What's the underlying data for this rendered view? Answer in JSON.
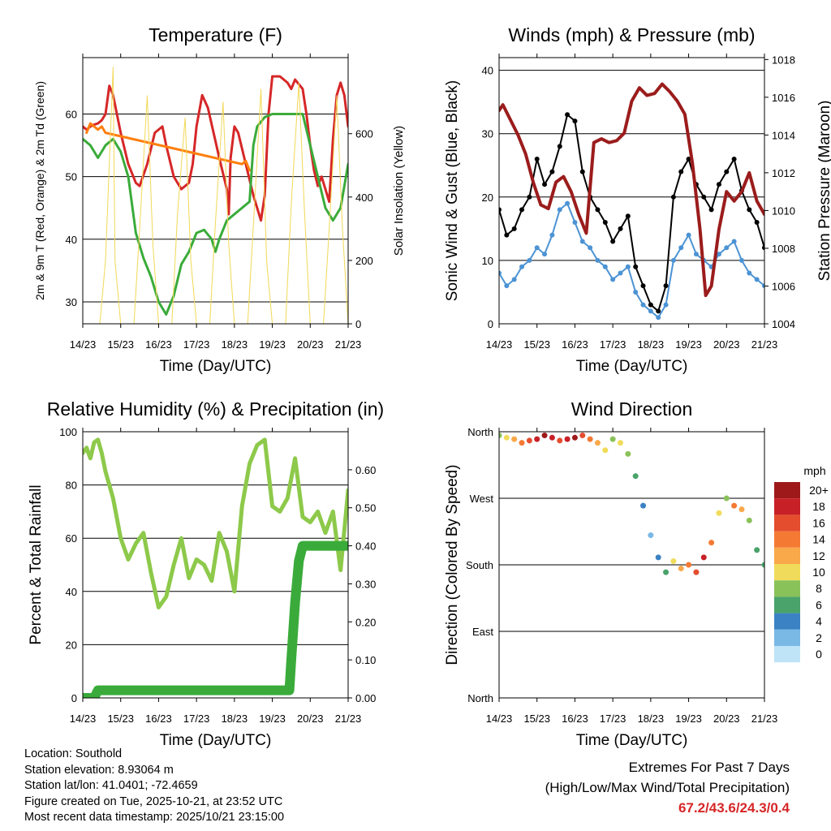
{
  "chart_data": [
    {
      "id": "temperature",
      "type": "line",
      "title": "Temperature (F)",
      "xlabel": "Time (Day/UTC)",
      "ylabel": "2m & 9m T (Red, Orange) & 2m Td (Green)",
      "ylabel_right": "Solar Insolation (Yellow)",
      "x_ticks": [
        "14/23",
        "15/23",
        "16/23",
        "17/23",
        "18/23",
        "19/23",
        "20/23",
        "21/23"
      ],
      "xlim": [
        0,
        7
      ],
      "ylim": [
        26.5,
        69
      ],
      "yticks": [
        30,
        40,
        50,
        60
      ],
      "ylim_right": [
        0,
        840
      ],
      "yticks_right": [
        0,
        200,
        400,
        600
      ],
      "series": [
        {
          "name": "2m T",
          "color": "#d62728",
          "x": [
            0,
            0.1,
            0.2,
            0.3,
            0.4,
            0.5,
            0.6,
            0.7,
            0.8,
            1,
            1.2,
            1.4,
            1.5,
            1.7,
            1.9,
            2.1,
            2.2,
            2.4,
            2.6,
            2.8,
            2.9,
            3,
            3.15,
            3.3,
            3.45,
            3.6,
            3.8,
            3.85,
            3.9,
            4.0,
            4.1,
            4.3,
            4.5,
            4.7,
            4.8,
            4.9,
            5,
            5.2,
            5.4,
            5.5,
            5.6,
            5.8,
            5.9,
            6,
            6.1,
            6.2,
            6.3,
            6.4,
            6.5,
            6.6,
            6.7,
            6.8,
            6.9,
            7
          ],
          "values": [
            58,
            57.5,
            58,
            58.3,
            58.5,
            59,
            60,
            64.5,
            63,
            57,
            52,
            49,
            48.5,
            52,
            57,
            58,
            55,
            50,
            48,
            49,
            52,
            58,
            63,
            61,
            57,
            53,
            48,
            44,
            53,
            58,
            57,
            52,
            47,
            43,
            47,
            60,
            66,
            66,
            65,
            64,
            65.5,
            64,
            60,
            55,
            51,
            48.5,
            50,
            48,
            46,
            56,
            63,
            65,
            63,
            58
          ]
        },
        {
          "name": "9m T",
          "color": "#ff7f0e",
          "x": [
            0.1,
            0.2,
            0.3,
            0.4,
            0.5,
            0.6,
            4.2,
            4.3,
            4.4
          ],
          "values": [
            57,
            58.5,
            58,
            57.5,
            58,
            57,
            52,
            52.5,
            51
          ]
        },
        {
          "name": "2m Td",
          "color": "#3aab3a",
          "x": [
            0,
            0.2,
            0.4,
            0.6,
            0.8,
            1,
            1.2,
            1.4,
            1.6,
            1.8,
            2,
            2.2,
            2.4,
            2.6,
            2.8,
            3,
            3.2,
            3.4,
            3.5,
            3.6,
            3.8,
            4,
            4.2,
            4.4,
            4.5,
            4.6,
            4.8,
            5,
            5.2,
            5.4,
            5.6,
            5.8,
            6,
            6.2,
            6.4,
            6.6,
            6.8,
            7
          ],
          "values": [
            56,
            55,
            53,
            55,
            56,
            54,
            50,
            41,
            37,
            34,
            30,
            28,
            31,
            36,
            38,
            41,
            41.5,
            40,
            38,
            40,
            43,
            44,
            45,
            46,
            55,
            58,
            59.5,
            60,
            60,
            60,
            60,
            60,
            55,
            50,
            45,
            43,
            45,
            52
          ]
        },
        {
          "name": "Solar Insolation",
          "color": "#f2d857",
          "axis": "right",
          "x": [
            0,
            0.45,
            0.6,
            0.8,
            0.85,
            1,
            1.15,
            1.35,
            1.5,
            1.7,
            1.85,
            2,
            2.15,
            2.35,
            2.5,
            2.7,
            2.85,
            3,
            3.15,
            3.35,
            3.5,
            3.7,
            3.85,
            4,
            4.15,
            4.35,
            4.5,
            4.7,
            4.85,
            5,
            5.15,
            5.35,
            5.5,
            5.7,
            5.85,
            6,
            6.15,
            6.35,
            6.5,
            6.7,
            6.85,
            7
          ],
          "values": [
            0,
            0,
            200,
            810,
            200,
            0,
            0,
            0,
            300,
            720,
            250,
            0,
            0,
            0,
            350,
            650,
            200,
            0,
            0,
            0,
            320,
            700,
            250,
            0,
            0,
            0,
            310,
            740,
            200,
            0,
            0,
            0,
            380,
            760,
            350,
            0,
            0,
            0,
            300,
            720,
            300,
            0
          ]
        }
      ]
    },
    {
      "id": "winds",
      "type": "scatter",
      "title": "Winds (mph) & Pressure (mb)",
      "xlabel": "Time (Day/UTC)",
      "ylabel": "Sonic Wind & Gust (Blue, Black)",
      "ylabel_right": "Station Pressure (Maroon)",
      "x_ticks": [
        "14/23",
        "15/23",
        "16/23",
        "17/23",
        "18/23",
        "19/23",
        "20/23",
        "21/23"
      ],
      "xlim": [
        0,
        7
      ],
      "ylim": [
        0,
        42
      ],
      "yticks": [
        0,
        10,
        20,
        30,
        40
      ],
      "ylim_right": [
        1004,
        1018.1
      ],
      "yticks_right": [
        1004,
        1006,
        1008,
        1010,
        1012,
        1014,
        1016,
        1018
      ],
      "series": [
        {
          "name": "Sonic Wind",
          "color": "#4c93d4",
          "x": [
            0,
            0.2,
            0.4,
            0.6,
            0.8,
            1,
            1.2,
            1.4,
            1.6,
            1.8,
            2,
            2.2,
            2.4,
            2.6,
            2.8,
            3,
            3.2,
            3.4,
            3.6,
            3.8,
            4,
            4.2,
            4.4,
            4.6,
            4.8,
            5,
            5.2,
            5.4,
            5.6,
            5.8,
            6,
            6.2,
            6.4,
            6.6,
            6.8,
            7
          ],
          "values": [
            8,
            6,
            7,
            9,
            10,
            12,
            11,
            14,
            18,
            19,
            16,
            13,
            12,
            10,
            9,
            7,
            8,
            9,
            5,
            3,
            2,
            1,
            3,
            10,
            12,
            14,
            11,
            10,
            9,
            11,
            12,
            13,
            10,
            8,
            7,
            6
          ]
        },
        {
          "name": "Gust",
          "color": "#000000",
          "x": [
            0,
            0.2,
            0.4,
            0.6,
            0.8,
            1,
            1.2,
            1.4,
            1.6,
            1.8,
            2,
            2.2,
            2.4,
            2.6,
            2.8,
            3,
            3.2,
            3.4,
            3.6,
            3.8,
            4,
            4.2,
            4.4,
            4.6,
            4.8,
            5,
            5.2,
            5.4,
            5.6,
            5.8,
            6,
            6.2,
            6.4,
            6.6,
            6.8,
            7
          ],
          "values": [
            18,
            14,
            15,
            18,
            20,
            26,
            22,
            24,
            28,
            33,
            32,
            24,
            20,
            18,
            16,
            13,
            15,
            17,
            9,
            6,
            3,
            2,
            6,
            20,
            24,
            26,
            22,
            20,
            18,
            22,
            24,
            26,
            21,
            18,
            16,
            12
          ]
        },
        {
          "name": "Station Pressure",
          "color": "#9b1c1c",
          "axis": "right",
          "x": [
            0,
            0.1,
            0.3,
            0.5,
            0.7,
            0.9,
            1.1,
            1.3,
            1.5,
            1.7,
            1.9,
            2.1,
            2.3,
            2.5,
            2.7,
            2.9,
            3.1,
            3.3,
            3.5,
            3.7,
            3.9,
            4.1,
            4.3,
            4.5,
            4.7,
            4.9,
            5.1,
            5.3,
            5.45,
            5.6,
            5.8,
            6,
            6.2,
            6.4,
            6.6,
            6.8,
            7
          ],
          "values": [
            1015.3,
            1015.6,
            1014.8,
            1014.0,
            1013.0,
            1011.5,
            1010.3,
            1010.1,
            1011.5,
            1011.8,
            1011.0,
            1009.8,
            1008.8,
            1013.6,
            1013.8,
            1013.6,
            1013.7,
            1014.1,
            1015.8,
            1016.5,
            1016.1,
            1016.2,
            1016.7,
            1016.3,
            1015.8,
            1015.1,
            1012.5,
            1009.0,
            1005.5,
            1006.0,
            1009.0,
            1011.0,
            1010.5,
            1011.0,
            1012.0,
            1010.5,
            1009.8
          ]
        }
      ]
    },
    {
      "id": "humidity",
      "type": "line",
      "title": "Relative Humidity (%) & Precipitation (in)",
      "xlabel": "Time (Day/UTC)",
      "ylabel": "Percent & Total Rainfall",
      "x_ticks": [
        "14/23",
        "15/23",
        "16/23",
        "17/23",
        "18/23",
        "19/23",
        "20/23",
        "21/23"
      ],
      "xlim": [
        0,
        7
      ],
      "ylim": [
        0,
        100
      ],
      "yticks": [
        0,
        20,
        40,
        60,
        80,
        100
      ],
      "ylim_right": [
        0,
        0.7
      ],
      "yticks_right": [
        "0.00",
        "0.10",
        "0.20",
        "0.30",
        "0.40",
        "0.50",
        "0.60"
      ],
      "series": [
        {
          "name": "Relative Humidity",
          "color": "#8dc94a",
          "x": [
            0,
            0.1,
            0.2,
            0.3,
            0.4,
            0.5,
            0.6,
            0.8,
            1.0,
            1.2,
            1.4,
            1.6,
            1.8,
            2.0,
            2.2,
            2.4,
            2.6,
            2.8,
            3.0,
            3.2,
            3.4,
            3.6,
            3.8,
            4.0,
            4.2,
            4.4,
            4.6,
            4.8,
            5.0,
            5.2,
            5.4,
            5.6,
            5.8,
            6.0,
            6.2,
            6.4,
            6.6,
            6.8,
            7.0
          ],
          "values": [
            92,
            94,
            90,
            96,
            97,
            92,
            85,
            75,
            60,
            52,
            58,
            62,
            47,
            34,
            38,
            50,
            60,
            45,
            52,
            50,
            44,
            62,
            55,
            40,
            72,
            88,
            95,
            97,
            72,
            70,
            75,
            90,
            68,
            66,
            70,
            62,
            70,
            48,
            78
          ]
        },
        {
          "name": "Total Rainfall",
          "color": "#3aab3a",
          "axis": "right",
          "x": [
            0,
            0.3,
            0.4,
            1,
            2,
            3,
            4,
            5,
            5.45,
            5.5,
            5.6,
            5.7,
            5.8,
            5.9,
            6,
            6.5,
            7
          ],
          "values": [
            0,
            0,
            0.02,
            0.02,
            0.02,
            0.02,
            0.02,
            0.02,
            0.02,
            0.1,
            0.25,
            0.36,
            0.4,
            0.4,
            0.4,
            0.4,
            0.4
          ]
        }
      ]
    },
    {
      "id": "wind_direction",
      "type": "scatter",
      "title": "Wind Direction",
      "xlabel": "Time (Day/UTC)",
      "ylabel": "Direction (Colored By Speed)",
      "x_ticks": [
        "14/23",
        "15/23",
        "16/23",
        "17/23",
        "18/23",
        "19/23",
        "20/23",
        "21/23"
      ],
      "xlim": [
        0,
        7
      ],
      "ylim": [
        0,
        360
      ],
      "y_tick_labels": [
        "North",
        "East",
        "South",
        "West",
        "North"
      ],
      "y_tick_values": [
        0,
        90,
        180,
        270,
        360
      ],
      "series": [
        {
          "name": "Direction",
          "x": [
            0,
            0.2,
            0.4,
            0.6,
            0.8,
            1,
            1.2,
            1.4,
            1.6,
            1.8,
            2,
            2.2,
            2.4,
            2.6,
            2.8,
            3,
            3.2,
            3.4,
            3.6,
            3.8,
            4,
            4.2,
            4.4,
            4.6,
            4.8,
            5,
            5.2,
            5.4,
            5.6,
            5.8,
            6,
            6.2,
            6.4,
            6.6,
            6.8,
            7
          ],
          "values": [
            355,
            352,
            350,
            345,
            348,
            350,
            355,
            352,
            348,
            350,
            352,
            355,
            350,
            345,
            335,
            350,
            345,
            330,
            300,
            260,
            220,
            190,
            170,
            185,
            175,
            180,
            170,
            190,
            210,
            250,
            270,
            260,
            255,
            240,
            200,
            180
          ],
          "speed": [
            8,
            10,
            12,
            14,
            16,
            18,
            20,
            18,
            16,
            18,
            20,
            16,
            14,
            12,
            10,
            8,
            10,
            8,
            6,
            4,
            2,
            3,
            5,
            10,
            12,
            14,
            16,
            18,
            14,
            10,
            8,
            14,
            12,
            8,
            6,
            5
          ]
        }
      ],
      "legend_title": "mph",
      "legend_labels": [
        "20+",
        "18",
        "16",
        "14",
        "12",
        "10",
        "8",
        "6",
        "4",
        "2",
        "0"
      ],
      "legend_colors": [
        "#9e1a1a",
        "#c82027",
        "#e44d2e",
        "#f47a33",
        "#f9a84a",
        "#f0dc5a",
        "#8ac25a",
        "#4aa36a",
        "#3b82c4",
        "#7ab8e6",
        "#bfe4f7"
      ]
    }
  ],
  "info": {
    "location": "Location: Southold",
    "elevation": "Station elevation: 8.93064 m",
    "latlon": "Station lat/lon: 41.0401; -72.4659",
    "created": "Figure created on Tue, 2025-10-21, at 23:52 UTC",
    "recent": "Most recent data timestamp: 2025/10/21 23:15:00"
  },
  "extremes": {
    "title": "Extremes For Past 7 Days",
    "subtitle": "(High/Low/Max Wind/Total Precipitation)",
    "values": "67.2/43.6/24.3/0.4"
  }
}
